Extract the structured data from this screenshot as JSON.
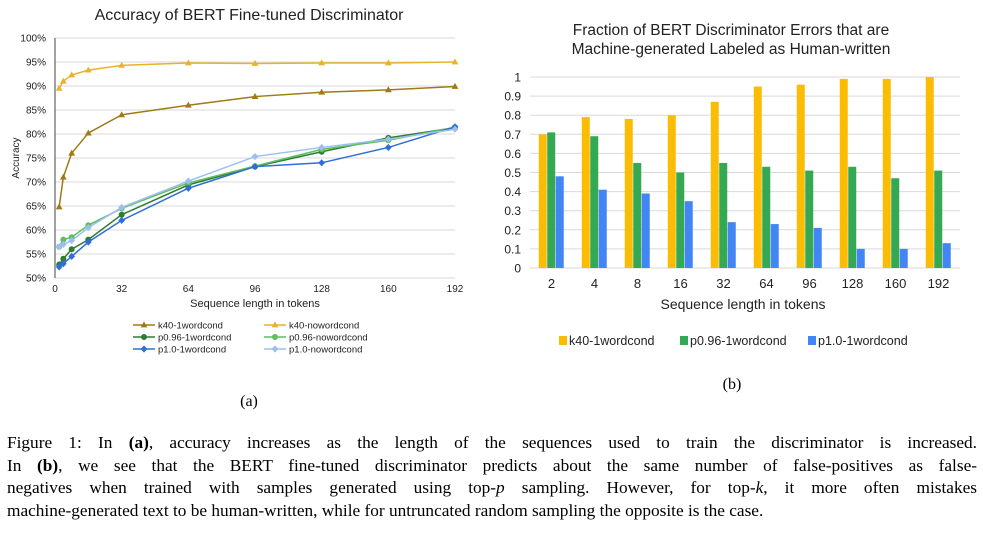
{
  "chart_data": [
    {
      "type": "line",
      "title": "Accuracy of BERT Fine-tuned Discriminator",
      "xlabel": "Sequence length in tokens",
      "ylabel": "Accuracy",
      "x": [
        2,
        4,
        8,
        16,
        32,
        64,
        96,
        128,
        160,
        192
      ],
      "x_ticks": [
        "0",
        "32",
        "64",
        "96",
        "128",
        "160",
        "192"
      ],
      "y_ticks": [
        "50%",
        "55%",
        "60%",
        "65%",
        "70%",
        "75%",
        "80%",
        "85%",
        "90%",
        "95%",
        "100%"
      ],
      "ylim": [
        50,
        100
      ],
      "xlim": [
        0,
        192
      ],
      "grid": "horizontal",
      "legend_position": "bottom",
      "series": [
        {
          "name": "k40-1wordcond",
          "color": "#a07a14",
          "marker": "triangle",
          "values": [
            64.8,
            71.0,
            76.0,
            80.2,
            84.0,
            86.0,
            87.8,
            88.7,
            89.2,
            89.9
          ]
        },
        {
          "name": "k40-nowordcond",
          "color": "#e8b32a",
          "marker": "triangle",
          "values": [
            89.5,
            91.0,
            92.3,
            93.3,
            94.3,
            94.8,
            94.7,
            94.8,
            94.8,
            95.0
          ]
        },
        {
          "name": "p0.96-1wordcond",
          "color": "#2e7d32",
          "marker": "circle",
          "values": [
            52.8,
            54.0,
            56.0,
            58.0,
            63.2,
            69.4,
            73.2,
            76.3,
            79.2,
            81.3
          ]
        },
        {
          "name": "p0.96-nowordcond",
          "color": "#5cbf60",
          "marker": "circle",
          "values": [
            56.5,
            58.0,
            58.5,
            61.0,
            64.5,
            69.8,
            73.3,
            76.8,
            78.7,
            81.4
          ]
        },
        {
          "name": "p1.0-1wordcond",
          "color": "#2f6fd6",
          "marker": "diamond",
          "values": [
            52.3,
            53.0,
            54.5,
            57.5,
            62.0,
            68.7,
            73.2,
            74.0,
            77.2,
            81.5
          ]
        },
        {
          "name": "p1.0-nowordcond",
          "color": "#9fbef0",
          "marker": "diamond",
          "values": [
            56.5,
            57.0,
            57.8,
            60.5,
            64.7,
            70.2,
            75.3,
            77.2,
            78.9,
            81.0
          ]
        }
      ]
    },
    {
      "type": "bar",
      "title": "Fraction of BERT Discriminator Errors that are Machine-generated Labeled as Human-written",
      "title_lines": [
        "Fraction of BERT Discriminator Errors that are",
        "Machine-generated Labeled as Human-written"
      ],
      "xlabel": "Sequence length in tokens",
      "ylabel": "",
      "categories": [
        "2",
        "4",
        "8",
        "16",
        "32",
        "64",
        "96",
        "128",
        "160",
        "192"
      ],
      "y_ticks": [
        "0",
        "0.1",
        "0.2",
        "0.3",
        "0.4",
        "0.5",
        "0.6",
        "0.7",
        "0.8",
        "0.9",
        "1"
      ],
      "ylim": [
        0,
        1
      ],
      "grid": "horizontal",
      "legend_position": "bottom",
      "series": [
        {
          "name": "k40-1wordcond",
          "color": "#fbbc04",
          "values": [
            0.7,
            0.79,
            0.78,
            0.8,
            0.87,
            0.95,
            0.96,
            0.99,
            0.99,
            1.0
          ]
        },
        {
          "name": "p0.96-1wordcond",
          "color": "#34a853",
          "values": [
            0.71,
            0.69,
            0.55,
            0.5,
            0.55,
            0.53,
            0.51,
            0.53,
            0.47,
            0.51
          ]
        },
        {
          "name": "p1.0-1wordcond",
          "color": "#4285f4",
          "values": [
            0.48,
            0.41,
            0.39,
            0.35,
            0.24,
            0.23,
            0.21,
            0.1,
            0.1,
            0.13
          ]
        }
      ]
    }
  ],
  "subfigure_labels": [
    "(a)",
    "(b)"
  ],
  "caption": {
    "lines": [
      [
        "Figure 1: In ",
        {
          "b": "(a)"
        },
        ", accuracy increases as the length of the sequences used to train the discriminator is increased."
      ],
      [
        "In ",
        {
          "b": "(b)"
        },
        ", we see that the BERT fine-tuned discriminator predicts about the same number of false-positives as false-"
      ],
      [
        "negatives when trained with samples generated using top-",
        {
          "i": "p"
        },
        " sampling. However, for top-",
        {
          "i": "k"
        },
        ", it more often mistakes"
      ],
      [
        "machine-generated text to be human-written, while for untruncated random sampling the opposite is the case."
      ]
    ]
  }
}
